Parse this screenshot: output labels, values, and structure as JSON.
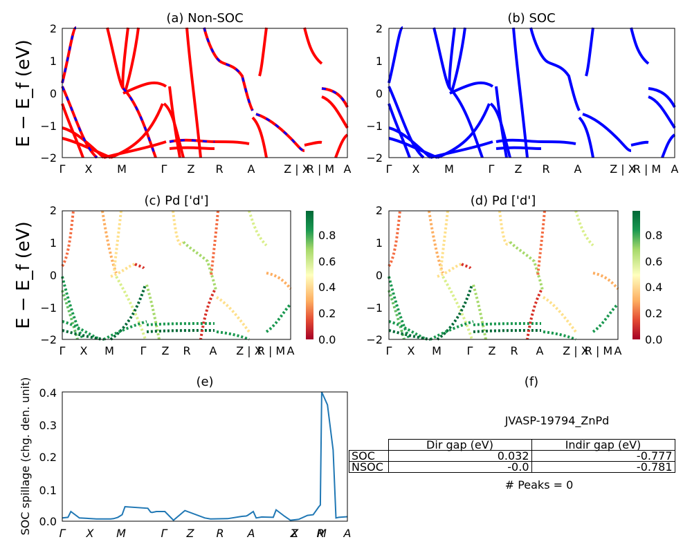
{
  "chart_data": [
    {
      "type": "line",
      "title": "(a) Non-SOC",
      "ylabel": "E − E_f (eV)",
      "ylim": [
        -2,
        2
      ],
      "yticks": [
        "−2",
        "−1",
        "0",
        "1",
        "2"
      ],
      "kpath_labels": [
        "Γ",
        "X",
        "M",
        "Γ",
        "Z",
        "R",
        "A",
        "Z | X",
        "R | M",
        "A"
      ],
      "series": [
        {
          "color": "#ff0000",
          "dashed_with": "#0000ff"
        }
      ]
    },
    {
      "type": "line",
      "title": "(b) SOC",
      "ylim": [
        -2,
        2
      ],
      "yticks": [
        "−2",
        "−1",
        "0",
        "1",
        "2"
      ],
      "kpath_labels": [
        "Γ",
        "X",
        "M",
        "Γ",
        "Z",
        "R",
        "A",
        "Z | X",
        "R | M",
        "A"
      ],
      "series": [
        {
          "color": "#0000ff"
        }
      ]
    },
    {
      "type": "scatter",
      "title": "(c)  Pd ['d']",
      "ylabel": "E − E_f (eV)",
      "ylim": [
        -2,
        2
      ],
      "yticks": [
        "−2",
        "−1",
        "0",
        "1",
        "2"
      ],
      "kpath_labels": [
        "Γ",
        "X",
        "M",
        "Γ",
        "Z",
        "R",
        "A",
        "Z | X",
        "R | M",
        "A"
      ],
      "colorbar_ticks": [
        "0.0",
        "0.2",
        "0.4",
        "0.6",
        "0.8"
      ],
      "colormap": "RdYlGn"
    },
    {
      "type": "scatter",
      "title": "(d) Pd ['d']",
      "ylim": [
        -2,
        2
      ],
      "yticks": [
        "−2",
        "−1",
        "0",
        "1",
        "2"
      ],
      "kpath_labels": [
        "Γ",
        "X",
        "M",
        "Γ",
        "Z",
        "R",
        "A",
        "Z | X",
        "R | M",
        "A"
      ],
      "colorbar_ticks": [
        "0.0",
        "0.2",
        "0.4",
        "0.6",
        "0.8"
      ],
      "colormap": "RdYlGn"
    },
    {
      "type": "line",
      "title": "(e)",
      "ylabel": "SOC spillage (chg. den. unit)",
      "ylim": [
        0,
        0.4
      ],
      "yticks": [
        "0.0",
        "0.1",
        "0.2",
        "0.3",
        "0.4"
      ],
      "kpath_labels": [
        "Γ",
        "X",
        "M",
        "Γ",
        "Z",
        "R",
        "A",
        "Z",
        "X",
        "R",
        "M",
        "A"
      ],
      "x": [
        0,
        0.02,
        0.03,
        0.06,
        0.12,
        0.17,
        0.18,
        0.195,
        0.21,
        0.22,
        0.3,
        0.31,
        0.315,
        0.33,
        0.36,
        0.39,
        0.43,
        0.5,
        0.52,
        0.58,
        0.63,
        0.645,
        0.65,
        0.67,
        0.68,
        0.7,
        0.74,
        0.75,
        0.78,
        0.8,
        0.82,
        0.83,
        0.86,
        0.88,
        0.9,
        0.905,
        0.91,
        0.93,
        0.95,
        0.96,
        0.97,
        1.0
      ],
      "y": [
        0.01,
        0.012,
        0.03,
        0.01,
        0.007,
        0.007,
        0.008,
        0.012,
        0.02,
        0.045,
        0.04,
        0.028,
        0.027,
        0.03,
        0.03,
        0.003,
        0.033,
        0.01,
        0.007,
        0.008,
        0.015,
        0.016,
        0.018,
        0.03,
        0.01,
        0.013,
        0.012,
        0.035,
        0.015,
        0.003,
        0.005,
        0.006,
        0.018,
        0.02,
        0.045,
        0.05,
        0.4,
        0.36,
        0.22,
        0.01,
        0.012,
        0.014
      ],
      "series": [
        {
          "color": "#1f77b4"
        }
      ]
    }
  ],
  "table_panel": {
    "title": "(f)",
    "name": "JVASP-19794_ZnPd",
    "columns": [
      "Dir gap (eV)",
      "Indir gap (eV)"
    ],
    "rows": [
      {
        "label": "SOC",
        "dir": "0.032",
        "indir": "-0.777"
      },
      {
        "label": "NSOC",
        "dir": "-0.0",
        "indir": "-0.781"
      }
    ],
    "footer": "# Peaks = 0"
  }
}
